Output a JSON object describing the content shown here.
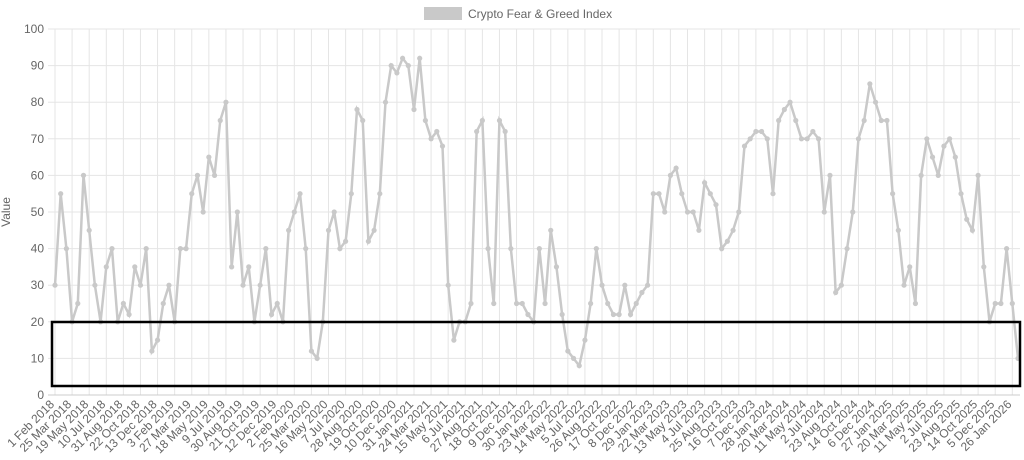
{
  "chart_data": {
    "type": "line",
    "legend": "top",
    "y_label": "Value",
    "ylim": [
      0,
      100
    ],
    "yticks": [
      0,
      10,
      20,
      30,
      40,
      50,
      60,
      70,
      80,
      90,
      100
    ],
    "grid": true,
    "categories": [
      "1 Feb 2018",
      null,
      null,
      "25 Mar 2018",
      null,
      null,
      "19 May 2018",
      null,
      null,
      "10 Jul 2018",
      null,
      null,
      "31 Aug 2018",
      null,
      null,
      "22 Oct 2018",
      null,
      null,
      "13 Dec 2018",
      null,
      null,
      "3 Feb 2019",
      null,
      null,
      "27 Mar 2019",
      null,
      null,
      "18 May 2019",
      null,
      null,
      "9 Jul 2019",
      null,
      null,
      "30 Aug 2019",
      null,
      null,
      "21 Oct 2019",
      null,
      null,
      "12 Dec 2019",
      null,
      null,
      "2 Feb 2020",
      null,
      null,
      "25 Mar 2020",
      null,
      null,
      "16 May 2020",
      null,
      null,
      "7 Jul 2020",
      null,
      null,
      "28 Aug 2020",
      null,
      null,
      "19 Oct 2020",
      null,
      null,
      "10 Dec 2020",
      null,
      null,
      "31 Jan 2021",
      null,
      null,
      "24 Mar 2021",
      null,
      null,
      "15 May 2021",
      null,
      null,
      "6 Jul 2021",
      null,
      null,
      "27 Aug 2021",
      null,
      null,
      "18 Oct 2021",
      null,
      null,
      "9 Dec 2021",
      null,
      null,
      "30 Jan 2022",
      null,
      null,
      "23 Mar 2022",
      null,
      null,
      "14 May 2022",
      null,
      null,
      "5 Jul 2022",
      null,
      null,
      "26 Aug 2022",
      null,
      null,
      "17 Oct 2022",
      null,
      null,
      "8 Dec 2022",
      null,
      null,
      "29 Jan 2023",
      null,
      null,
      "22 Mar 2023",
      null,
      null,
      "13 May 2023",
      null,
      null,
      "4 Jul 2023",
      null,
      null,
      "25 Aug 2023",
      null,
      null,
      "16 Oct 2023",
      null,
      null,
      "7 Dec 2023",
      null,
      null,
      "28 Jan 2024",
      null,
      null,
      "20 Mar 2024",
      null,
      null,
      "11 May 2024",
      null,
      null,
      "2 Jul 2024",
      null,
      null,
      "23 Aug 2024",
      null,
      null,
      "14 Oct 2024",
      null,
      null,
      "6 Dec 2024",
      null,
      null,
      "27 Jan 2025",
      null,
      null,
      "20 Mar 2025",
      null,
      null,
      "11 May 2025",
      null,
      null,
      "2 Jul 2025",
      null,
      null,
      "23 Aug 2025",
      null,
      null,
      "14 Oct 2025",
      null,
      null,
      "5 Dec 2025",
      null,
      null,
      "26 Jan 2026",
      null
    ],
    "series": [
      {
        "name": "Crypto Fear & Greed Index",
        "color": "#c9c9c9",
        "values": [
          30,
          55,
          40,
          20,
          25,
          60,
          45,
          30,
          20,
          35,
          40,
          20,
          25,
          22,
          35,
          30,
          40,
          12,
          15,
          25,
          30,
          20,
          40,
          40,
          55,
          60,
          50,
          65,
          60,
          75,
          80,
          35,
          50,
          30,
          35,
          20,
          30,
          40,
          22,
          25,
          20,
          45,
          50,
          55,
          40,
          12,
          10,
          20,
          45,
          50,
          40,
          42,
          55,
          78,
          75,
          42,
          45,
          55,
          80,
          90,
          88,
          92,
          90,
          78,
          92,
          75,
          70,
          72,
          68,
          30,
          15,
          20,
          20,
          25,
          72,
          75,
          40,
          25,
          75,
          72,
          40,
          25,
          25,
          22,
          20,
          40,
          25,
          45,
          35,
          22,
          12,
          10,
          8,
          15,
          25,
          40,
          30,
          25,
          22,
          22,
          30,
          22,
          25,
          28,
          30,
          55,
          55,
          50,
          60,
          62,
          55,
          50,
          50,
          45,
          58,
          55,
          52,
          40,
          42,
          45,
          50,
          68,
          70,
          72,
          72,
          70,
          55,
          75,
          78,
          80,
          75,
          70,
          70,
          72,
          70,
          50,
          60,
          28,
          30,
          40,
          50,
          70,
          75,
          85,
          80,
          75,
          75,
          55,
          45,
          30,
          35,
          25,
          60,
          70,
          65,
          60,
          68,
          70,
          65,
          55,
          48,
          45,
          60,
          35,
          20,
          25,
          25,
          40,
          25,
          10
        ]
      }
    ]
  }
}
